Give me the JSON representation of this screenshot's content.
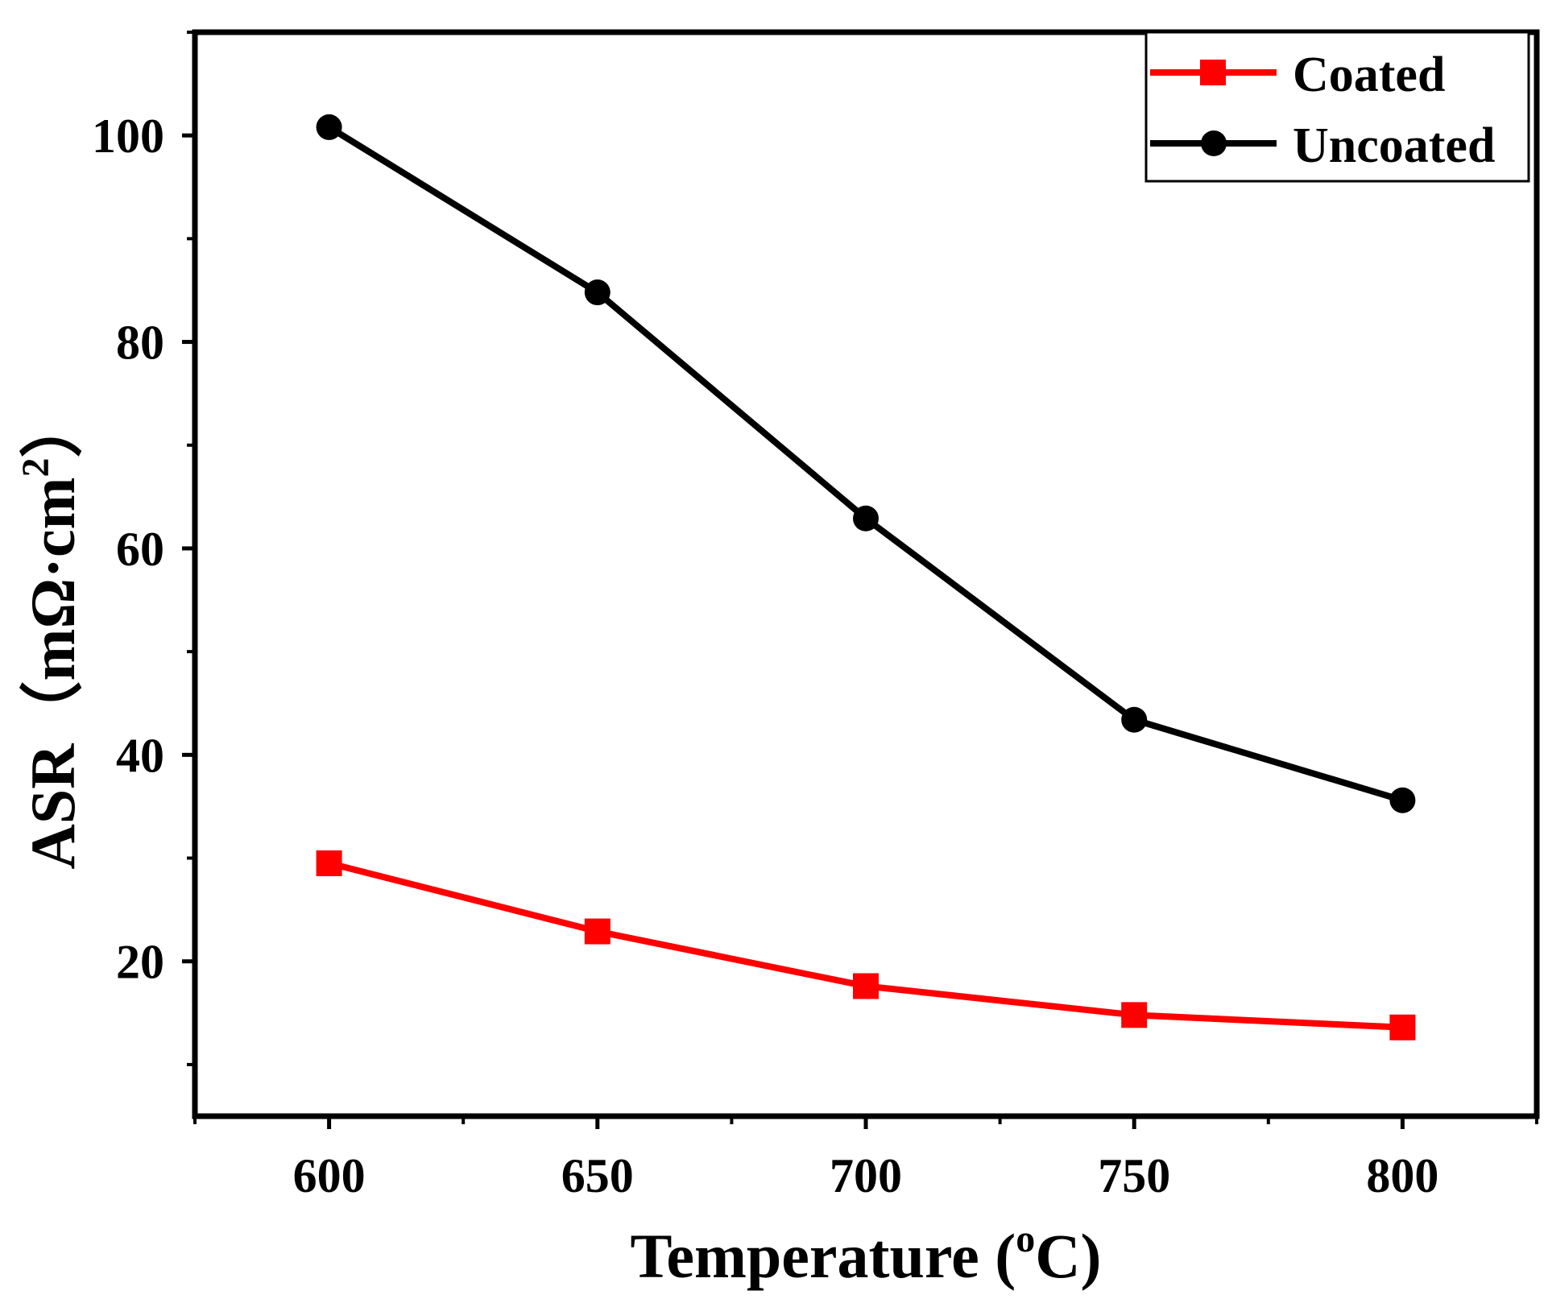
{
  "chart_data": {
    "type": "line",
    "title": "",
    "xlabel": {
      "main": "Temperature (",
      "sup": "o",
      "tail": "C)"
    },
    "ylabel": {
      "main": "ASR（mΩ·cm",
      "sup": "2",
      "tail": "）"
    },
    "x": [
      600,
      650,
      700,
      750,
      800
    ],
    "xlim": [
      575,
      825
    ],
    "ylim": [
      5,
      110
    ],
    "xticks": [
      600,
      650,
      700,
      750,
      800
    ],
    "xticklabels": [
      "600",
      "650",
      "700",
      "750",
      "800"
    ],
    "yticks": [
      20,
      40,
      60,
      80,
      100
    ],
    "yticklabels": [
      "20",
      "40",
      "60",
      "80",
      "100"
    ],
    "series": [
      {
        "name": "Coated",
        "color": "#ff0000",
        "marker": "square",
        "values": [
          29.5,
          22.9,
          17.6,
          14.8,
          13.6
        ]
      },
      {
        "name": "Uncoated",
        "color": "#000000",
        "marker": "circle",
        "values": [
          100.8,
          84.8,
          62.9,
          43.4,
          35.6
        ]
      }
    ],
    "legend": {
      "position": "top-right",
      "framed": true
    },
    "grid": false
  }
}
